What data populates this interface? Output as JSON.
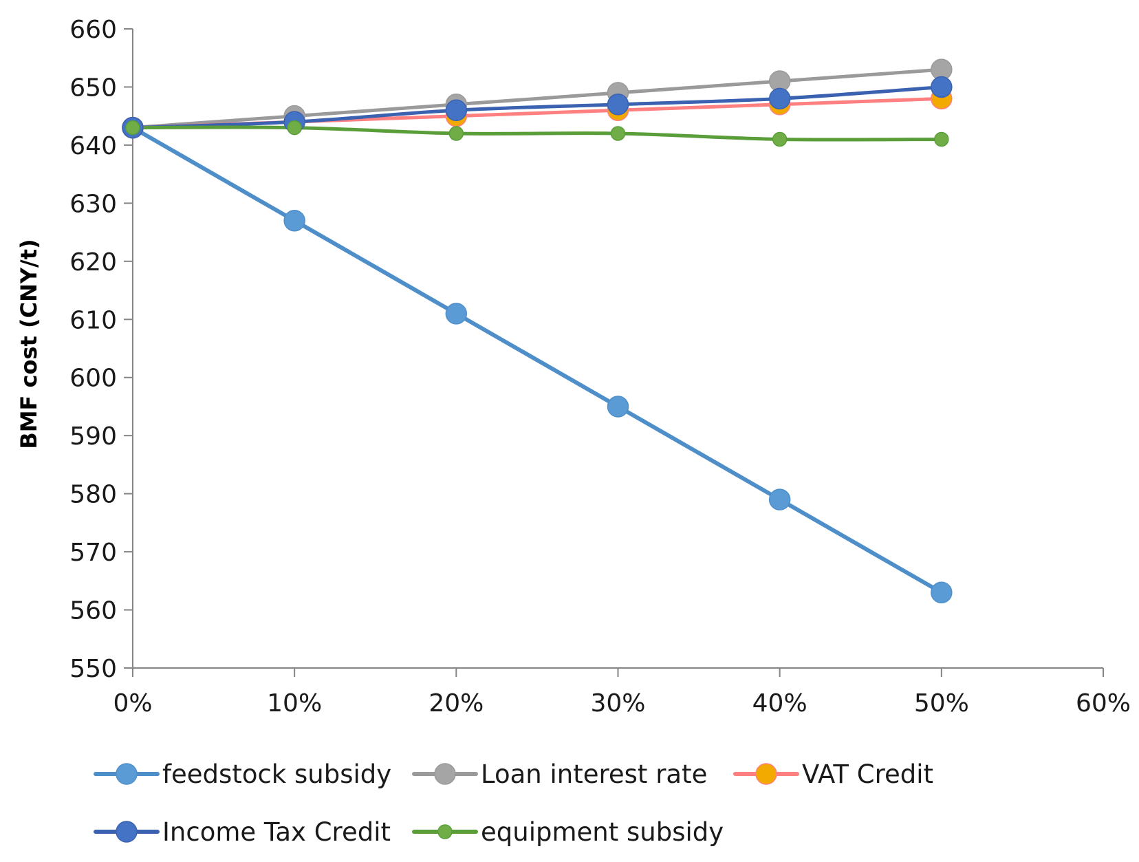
{
  "chart_data": {
    "type": "line",
    "title": "",
    "xlabel": "",
    "ylabel": "BMF cost (CNY/t)",
    "ylim": [
      550,
      660
    ],
    "y_ticks": [
      550,
      560,
      570,
      580,
      590,
      600,
      610,
      620,
      630,
      640,
      650,
      660
    ],
    "xlim": [
      0,
      60
    ],
    "x_ticks": [
      0,
      10,
      20,
      30,
      40,
      50,
      60
    ],
    "x_tick_labels": [
      "0%",
      "10%",
      "20%",
      "30%",
      "40%",
      "50%",
      "60%"
    ],
    "x": [
      0,
      10,
      20,
      30,
      40,
      50
    ],
    "grid": false,
    "legend_position": "bottom",
    "series": [
      {
        "name": "feedstock subsidy",
        "line_color": "#4f8fc9",
        "marker_color": "#5b9bd5",
        "marker": "large",
        "values": [
          643,
          627,
          611,
          595,
          579,
          563
        ]
      },
      {
        "name": "Loan interest rate",
        "line_color": "#9a9a9a",
        "marker_color": "#a5a5a5",
        "marker": "large",
        "values": [
          643,
          645,
          647,
          649,
          651,
          653
        ]
      },
      {
        "name": "VAT Credit",
        "line_color": "#ff8080",
        "marker_color": "#f2a900",
        "marker": "large",
        "values": [
          643,
          644,
          645,
          646,
          647,
          648
        ]
      },
      {
        "name": "Income Tax Credit",
        "line_color": "#3a62b0",
        "marker_color": "#4472c4",
        "marker": "large",
        "values": [
          643,
          644,
          646,
          647,
          648,
          650
        ]
      },
      {
        "name": "equipment subsidy",
        "line_color": "#5a9e3a",
        "marker_color": "#70ad47",
        "marker": "small",
        "values": [
          643,
          643,
          642,
          642,
          641,
          641
        ]
      }
    ]
  }
}
